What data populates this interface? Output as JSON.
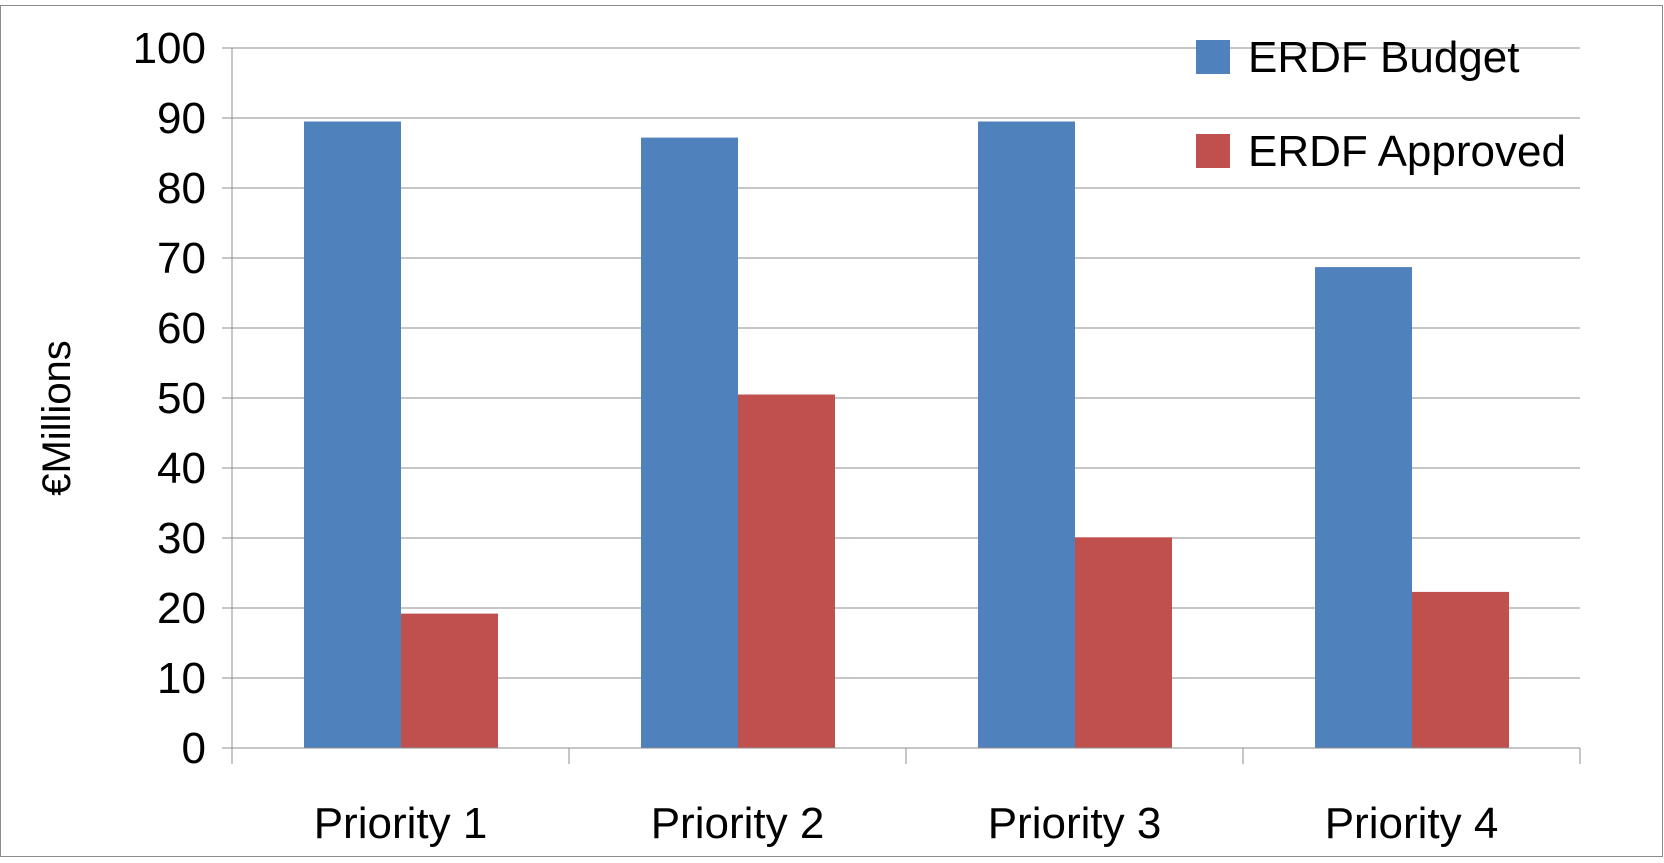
{
  "chart_data": {
    "type": "bar",
    "categories": [
      "Priority 1",
      "Priority 2",
      "Priority 3",
      "Priority 4"
    ],
    "series": [
      {
        "name": "ERDF Budget",
        "color": "#4F81BD",
        "values": [
          89.5,
          87.2,
          89.5,
          68.7
        ]
      },
      {
        "name": "ERDF Approved",
        "color": "#C0504D",
        "values": [
          19.2,
          50.5,
          30.1,
          22.3
        ]
      }
    ],
    "title": "",
    "xlabel": "",
    "ylabel": "€Millions",
    "ylim": [
      0,
      100
    ],
    "yticks": [
      0,
      10,
      20,
      30,
      40,
      50,
      60,
      70,
      80,
      90,
      100
    ],
    "grid": true,
    "legend_position": "top-right",
    "gridline_color": "#8C8C8C",
    "border_color": "#8C8C8C"
  }
}
